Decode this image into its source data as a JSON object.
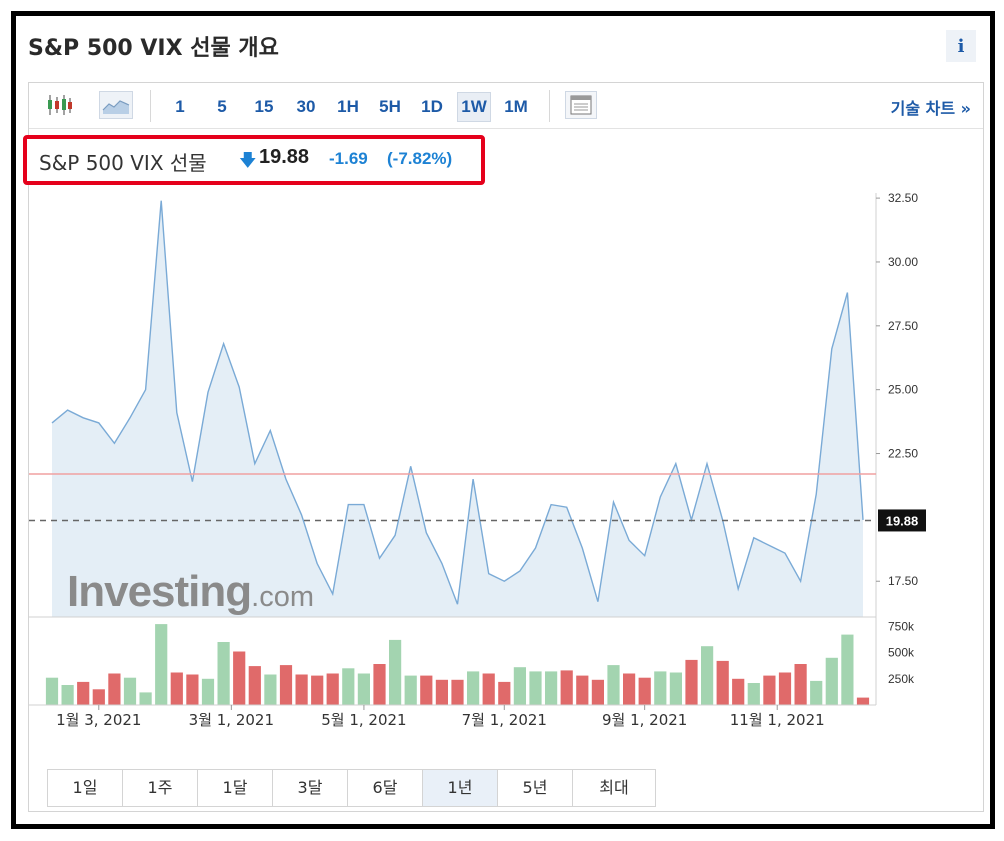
{
  "header": {
    "title": "S&P 500 VIX 선물 개요",
    "info_label": "i"
  },
  "toolbar": {
    "intervals": [
      "1",
      "5",
      "15",
      "30",
      "1H",
      "5H",
      "1D",
      "1W",
      "1M"
    ],
    "active_interval": "1W",
    "tech_chart_label": "기술 차트 »",
    "icons": {
      "candles": "candlestick-icon",
      "area": "area-chart-icon",
      "table": "table-icon"
    }
  },
  "quote": {
    "name": "S&P 500 VIX 선물",
    "arrow": "🡇",
    "price": "19.88",
    "change": "-1.69",
    "change_pct": "(-7.82%)"
  },
  "watermark": {
    "main": "Investing",
    "sub": ".com"
  },
  "ranges": [
    "1일",
    "1주",
    "1달",
    "3달",
    "6달",
    "1년",
    "5년",
    "최대"
  ],
  "active_range": "1년",
  "colors": {
    "line": "#7aaad6",
    "fill": "#e4eef6",
    "vol_up": "#a3d4b0",
    "vol_down": "#e06a6a",
    "ref_line": "#f0a0a0",
    "accent": "#1d5aa7"
  },
  "chart_data": {
    "type": "area",
    "title": "",
    "price_axis": {
      "ticks": [
        "32.50",
        "30.00",
        "27.50",
        "25.00",
        "22.50",
        "17.50"
      ],
      "range": [
        16.1,
        32.7
      ]
    },
    "last_price_label": "19.88",
    "last_price": 19.88,
    "ref_level": 21.7,
    "x_ticks": [
      {
        "label": "1월 3, 2021",
        "index": 3
      },
      {
        "label": "3월 1, 2021",
        "index": 11.5
      },
      {
        "label": "5월 1, 2021",
        "index": 20
      },
      {
        "label": "7월 1, 2021",
        "index": 29
      },
      {
        "label": "9월 1, 2021",
        "index": 38
      },
      {
        "label": "11월 1, 2021",
        "index": 46.5
      }
    ],
    "values": [
      23.7,
      24.2,
      23.9,
      23.7,
      22.9,
      23.9,
      25.0,
      32.4,
      24.1,
      21.4,
      24.9,
      26.8,
      25.1,
      22.1,
      23.4,
      21.5,
      20.1,
      18.2,
      17.0,
      20.5,
      20.5,
      18.4,
      19.3,
      22.0,
      19.4,
      18.2,
      16.6,
      21.5,
      17.8,
      17.5,
      17.9,
      18.8,
      20.5,
      20.4,
      18.8,
      16.7,
      20.6,
      19.1,
      18.5,
      20.8,
      22.1,
      19.9,
      22.1,
      19.9,
      17.2,
      19.2,
      18.9,
      18.6,
      17.5,
      20.9,
      26.6,
      28.8,
      19.9
    ],
    "volume_axis": {
      "ticks": [
        "750k",
        "500k",
        "250k"
      ],
      "max": 800000
    },
    "volume": [
      260000,
      190000,
      220000,
      150000,
      300000,
      260000,
      120000,
      770000,
      310000,
      290000,
      250000,
      600000,
      510000,
      370000,
      290000,
      380000,
      290000,
      280000,
      300000,
      350000,
      300000,
      390000,
      620000,
      280000,
      280000,
      240000,
      240000,
      320000,
      300000,
      220000,
      360000,
      320000,
      320000,
      330000,
      280000,
      240000,
      380000,
      300000,
      260000,
      320000,
      310000,
      430000,
      560000,
      420000,
      250000,
      210000,
      280000,
      310000,
      390000,
      230000,
      450000,
      670000,
      70000
    ],
    "volume_up": [
      true,
      true,
      false,
      false,
      false,
      true,
      true,
      true,
      false,
      false,
      true,
      true,
      false,
      false,
      true,
      false,
      false,
      false,
      false,
      true,
      true,
      false,
      true,
      true,
      false,
      false,
      false,
      true,
      false,
      false,
      true,
      true,
      true,
      false,
      false,
      false,
      true,
      false,
      false,
      true,
      true,
      false,
      true,
      false,
      false,
      true,
      false,
      false,
      false,
      true,
      true,
      true,
      false
    ]
  }
}
